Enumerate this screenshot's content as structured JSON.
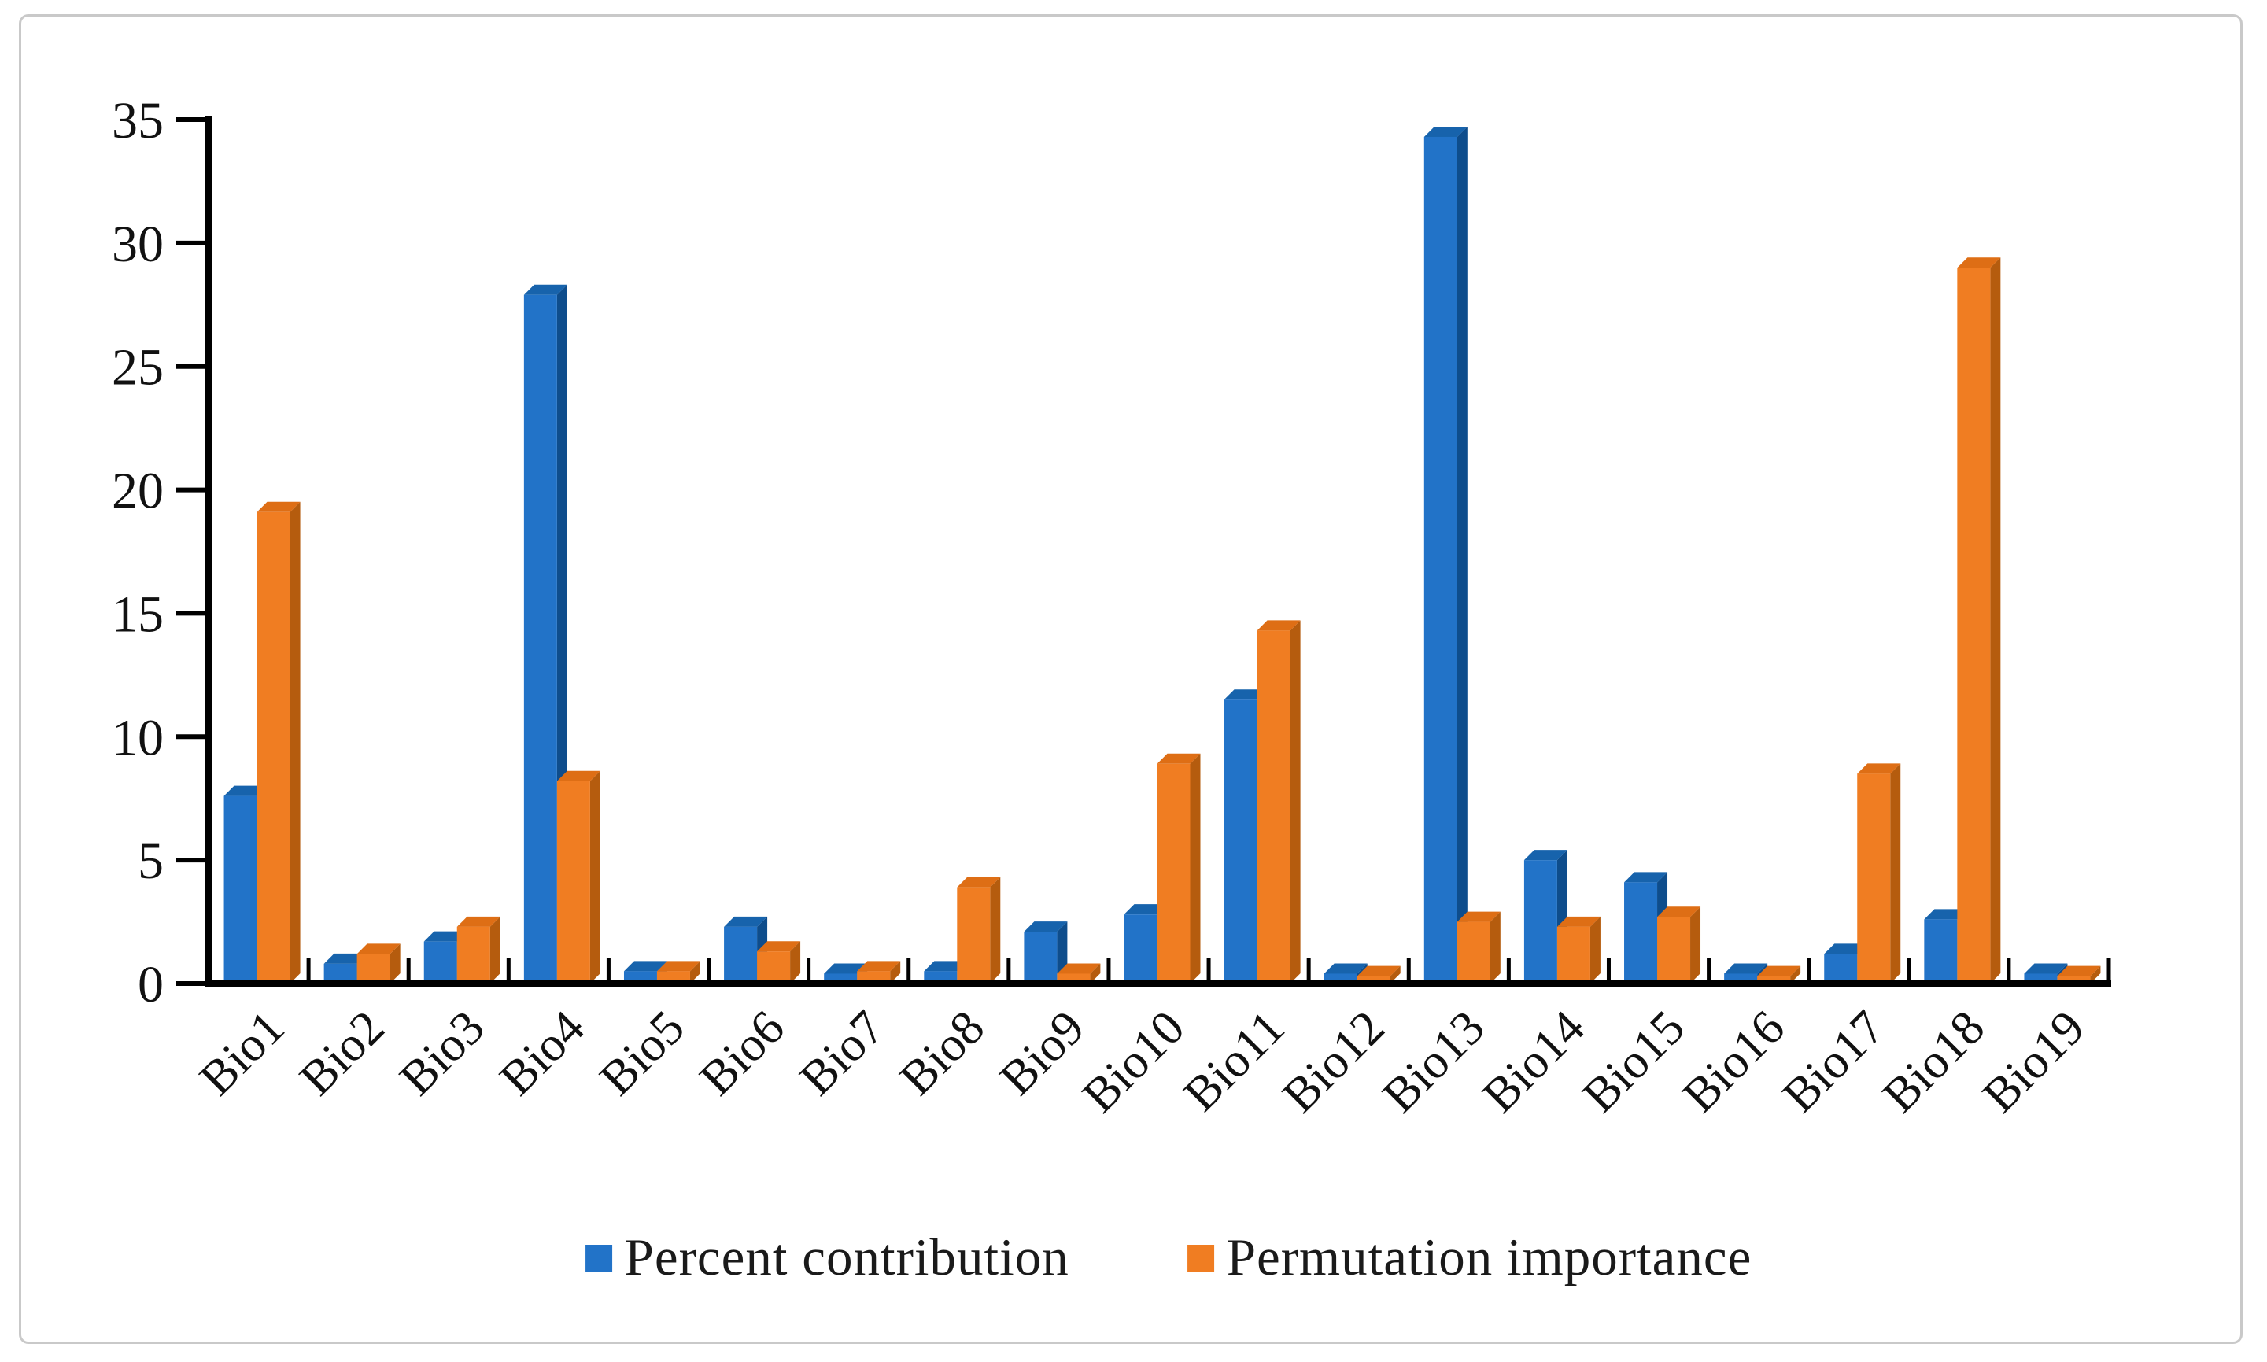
{
  "figure": {
    "background_color": "#ffffff",
    "border_color": "#c9c9c9"
  },
  "chart_data": {
    "type": "bar",
    "subtype": "grouped-3d",
    "title": "",
    "xlabel": "",
    "ylabel": "",
    "categories": [
      "Bio1",
      "Bio2",
      "Bio3",
      "Bio4",
      "Bio5",
      "Bio6",
      "Bio7",
      "Bio8",
      "Bio9",
      "Bio10",
      "Bio11",
      "Bio12",
      "Bio13",
      "Bio14",
      "Bio15",
      "Bio16",
      "Bio17",
      "Bio18",
      "Bio19"
    ],
    "series": [
      {
        "name": "Percent contribution",
        "color": "#2273C8",
        "color_side": "#0E4D8C",
        "color_top": "#1763AC",
        "values": [
          7.6,
          0.8,
          1.7,
          27.9,
          0.5,
          2.3,
          0.4,
          0.5,
          2.1,
          2.8,
          11.5,
          0.4,
          34.3,
          5.0,
          4.1,
          0.4,
          1.2,
          2.6,
          0.4
        ]
      },
      {
        "name": "Permutation importance",
        "color": "#F07D22",
        "color_side": "#B55C0E",
        "color_top": "#DE6E15",
        "values": [
          19.1,
          1.2,
          2.3,
          8.2,
          0.5,
          1.3,
          0.5,
          3.9,
          0.4,
          8.9,
          14.3,
          0.3,
          2.5,
          2.3,
          2.7,
          0.3,
          8.5,
          29.0,
          0.3
        ]
      }
    ],
    "ylim": [
      0,
      35
    ],
    "yticks": [
      0,
      5,
      10,
      15,
      20,
      25,
      30,
      35
    ],
    "grid": false,
    "axis_color": "#000000",
    "legend_position": "bottom"
  }
}
